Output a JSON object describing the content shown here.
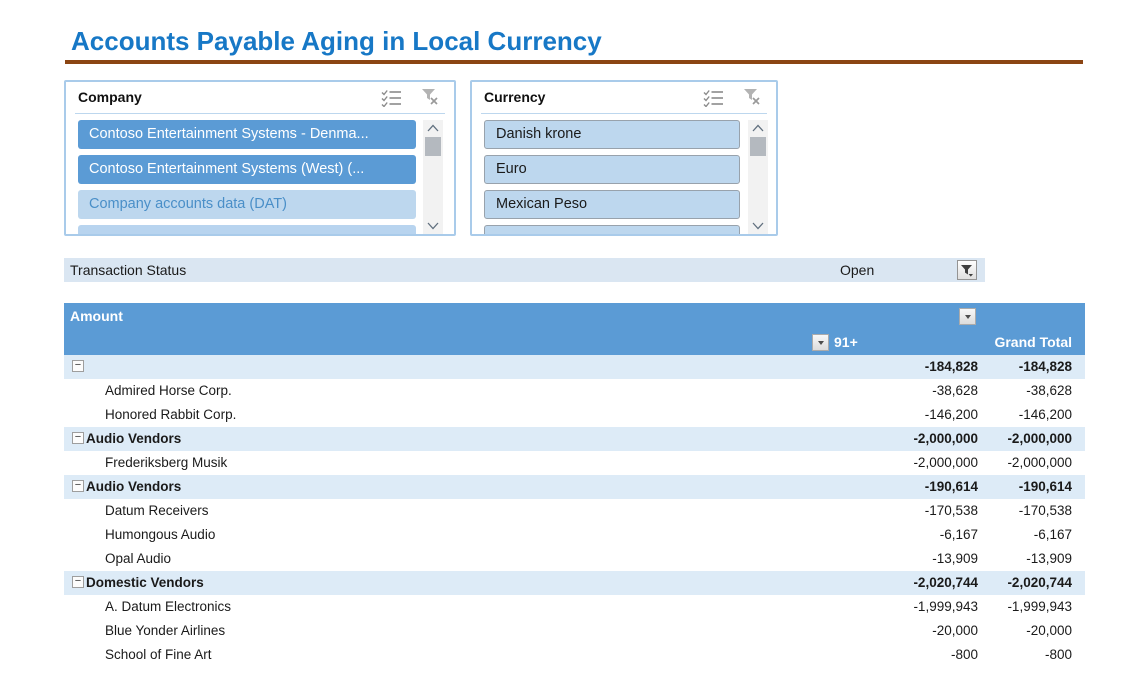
{
  "page": {
    "title": "Accounts Payable Aging in Local Currency"
  },
  "colors": {
    "title_blue": "#1778C6",
    "underline_brown": "#8B4513",
    "accent_blue": "#5B9BD5",
    "light_blue": "#BDD7EE",
    "group_row_blue": "#DDEBF7",
    "filter_bar_blue": "#DAE6F2"
  },
  "slicers": [
    {
      "title": "Company",
      "items": [
        {
          "label": "Contoso Entertainment Systems - Denma...",
          "state": "selected"
        },
        {
          "label": "Contoso Entertainment Systems (West) (...",
          "state": "selected"
        },
        {
          "label": "Company accounts data (DAT)",
          "state": "selected-light"
        },
        {
          "label": "",
          "state": "partial"
        }
      ]
    },
    {
      "title": "Currency",
      "items": [
        {
          "label": "Danish krone",
          "state": "selected-bordered"
        },
        {
          "label": "Euro",
          "state": "selected-bordered"
        },
        {
          "label": "Mexican Peso",
          "state": "selected-bordered"
        },
        {
          "label": "",
          "state": "partial-bordered"
        }
      ]
    }
  ],
  "filter_row": {
    "label": "Transaction Status",
    "value": "Open"
  },
  "pivot": {
    "title": "Amount",
    "columns": [
      {
        "label": "91+"
      },
      {
        "label": "Grand Total"
      }
    ],
    "rows": [
      {
        "type": "group",
        "label": "",
        "values": [
          "-184,828",
          "-184,828"
        ]
      },
      {
        "type": "detail",
        "label": "Admired Horse Corp.",
        "values": [
          "-38,628",
          "-38,628"
        ]
      },
      {
        "type": "detail",
        "label": "Honored Rabbit Corp.",
        "values": [
          "-146,200",
          "-146,200"
        ]
      },
      {
        "type": "group",
        "label": "Audio Vendors",
        "values": [
          "-2,000,000",
          "-2,000,000"
        ]
      },
      {
        "type": "detail",
        "label": "Frederiksberg Musik",
        "values": [
          "-2,000,000",
          "-2,000,000"
        ]
      },
      {
        "type": "group",
        "label": "Audio Vendors",
        "values": [
          "-190,614",
          "-190,614"
        ]
      },
      {
        "type": "detail",
        "label": "Datum Receivers",
        "values": [
          "-170,538",
          "-170,538"
        ]
      },
      {
        "type": "detail",
        "label": "Humongous Audio",
        "values": [
          "-6,167",
          "-6,167"
        ]
      },
      {
        "type": "detail",
        "label": "Opal Audio",
        "values": [
          "-13,909",
          "-13,909"
        ]
      },
      {
        "type": "group",
        "label": "Domestic Vendors",
        "values": [
          "-2,020,744",
          "-2,020,744"
        ]
      },
      {
        "type": "detail",
        "label": "A. Datum Electronics",
        "values": [
          "-1,999,943",
          "-1,999,943"
        ]
      },
      {
        "type": "detail",
        "label": "Blue Yonder Airlines",
        "values": [
          "-20,000",
          "-20,000"
        ]
      },
      {
        "type": "detail",
        "label": "School of Fine Art",
        "values": [
          "-800",
          "-800"
        ]
      }
    ]
  }
}
